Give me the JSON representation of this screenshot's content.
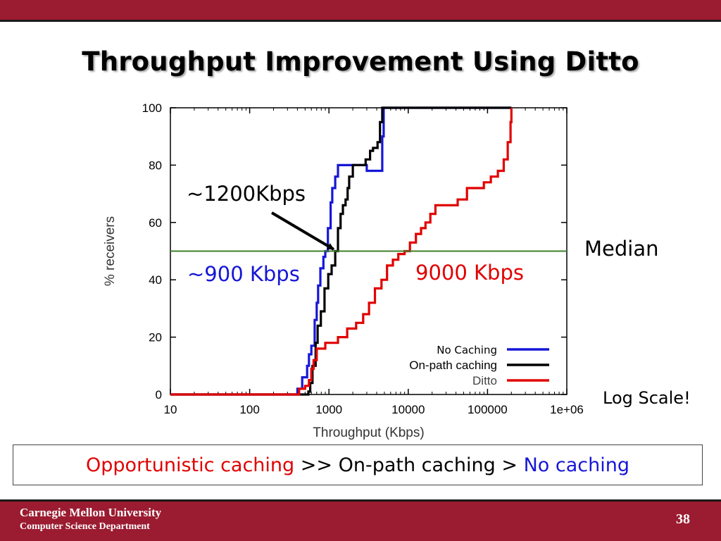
{
  "slide": {
    "title": "Throughput Improvement Using Ditto",
    "colors": {
      "brand": "#9b1b30",
      "blue": "#1616d8",
      "red": "#e10000",
      "median_line": "#3f7f2a"
    }
  },
  "chart_data": {
    "type": "line",
    "xlabel": "Throughput (Kbps)",
    "ylabel": "% receivers",
    "x_scale": "log",
    "xlim": [
      10,
      1000000
    ],
    "ylim": [
      0,
      100
    ],
    "x_ticks": [
      10,
      100,
      1000,
      10000,
      100000,
      1000000
    ],
    "x_tick_labels": [
      "10",
      "100",
      "1000",
      "10000",
      "100000",
      "1e+06"
    ],
    "y_ticks": [
      0,
      20,
      40,
      60,
      80,
      100
    ],
    "grid": false,
    "legend_position": "bottom-right",
    "series": [
      {
        "name": "No Caching",
        "color": "#1616d8",
        "points": [
          [
            10,
            0
          ],
          [
            380,
            0
          ],
          [
            400,
            2
          ],
          [
            440,
            2
          ],
          [
            460,
            6
          ],
          [
            510,
            6
          ],
          [
            530,
            10
          ],
          [
            560,
            14
          ],
          [
            600,
            17
          ],
          [
            640,
            17
          ],
          [
            660,
            26
          ],
          [
            700,
            32
          ],
          [
            730,
            38
          ],
          [
            780,
            44
          ],
          [
            850,
            48
          ],
          [
            900,
            50
          ],
          [
            970,
            58
          ],
          [
            1050,
            67
          ],
          [
            1100,
            72
          ],
          [
            1200,
            76
          ],
          [
            1300,
            80
          ],
          [
            1700,
            80
          ],
          [
            2300,
            80
          ],
          [
            2500,
            80
          ],
          [
            3000,
            78
          ],
          [
            4400,
            78
          ],
          [
            4700,
            90
          ],
          [
            4900,
            100
          ],
          [
            200000,
            100
          ]
        ]
      },
      {
        "name": "On-path caching",
        "color": "#000000",
        "points": [
          [
            10,
            0
          ],
          [
            390,
            0
          ],
          [
            550,
            1
          ],
          [
            580,
            4
          ],
          [
            620,
            10
          ],
          [
            680,
            18
          ],
          [
            720,
            24
          ],
          [
            790,
            29
          ],
          [
            880,
            37
          ],
          [
            980,
            42
          ],
          [
            1080,
            45
          ],
          [
            1200,
            50
          ],
          [
            1300,
            58
          ],
          [
            1400,
            63
          ],
          [
            1500,
            66
          ],
          [
            1620,
            68
          ],
          [
            1720,
            72
          ],
          [
            1800,
            76
          ],
          [
            2000,
            80
          ],
          [
            2500,
            80
          ],
          [
            2900,
            82
          ],
          [
            3300,
            85
          ],
          [
            3600,
            86
          ],
          [
            4100,
            88
          ],
          [
            4400,
            95
          ],
          [
            4700,
            100
          ],
          [
            200000,
            100
          ]
        ]
      },
      {
        "name": "Ditto",
        "color": "#e10000",
        "points": [
          [
            10,
            0
          ],
          [
            390,
            0
          ],
          [
            420,
            2
          ],
          [
            500,
            3
          ],
          [
            560,
            5
          ],
          [
            600,
            9
          ],
          [
            640,
            12
          ],
          [
            700,
            16
          ],
          [
            900,
            18
          ],
          [
            1300,
            20
          ],
          [
            1700,
            23
          ],
          [
            2200,
            25
          ],
          [
            2700,
            28
          ],
          [
            3200,
            32
          ],
          [
            3800,
            37
          ],
          [
            4600,
            40
          ],
          [
            5400,
            45
          ],
          [
            6400,
            47
          ],
          [
            7500,
            49
          ],
          [
            9000,
            50
          ],
          [
            10500,
            53
          ],
          [
            12500,
            56
          ],
          [
            14500,
            58
          ],
          [
            16500,
            60
          ],
          [
            19000,
            63
          ],
          [
            22000,
            66
          ],
          [
            32000,
            66
          ],
          [
            42000,
            68
          ],
          [
            55000,
            72
          ],
          [
            75000,
            72
          ],
          [
            90000,
            74
          ],
          [
            110000,
            76
          ],
          [
            135000,
            78
          ],
          [
            160000,
            82
          ],
          [
            180000,
            88
          ],
          [
            195000,
            95
          ],
          [
            200000,
            100
          ]
        ]
      }
    ],
    "reference_line": {
      "y": 50
    },
    "annotations": {
      "arrow_label": "~1200Kbps",
      "median_label": "Median",
      "blue_label": "~900 Kbps",
      "red_label": "9000 Kbps",
      "scale_note": "Log Scale!"
    }
  },
  "summary": {
    "part1": "Opportunistic caching",
    "part2": " >> On-path caching > ",
    "part3": "No caching"
  },
  "footer": {
    "university": "Carnegie Mellon University",
    "department": "Computer Science Department",
    "page_number": "38"
  }
}
